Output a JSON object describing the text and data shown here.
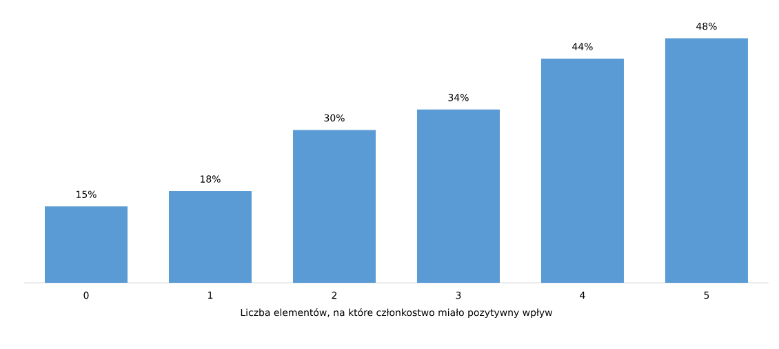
{
  "chart_data": {
    "type": "bar",
    "xlabel": "Liczba elementów, na które członkostwo miało pozytywny wpływ",
    "categories": [
      "0",
      "1",
      "2",
      "3",
      "4",
      "5"
    ],
    "values": [
      15,
      18,
      30,
      34,
      44,
      48
    ],
    "value_labels": [
      "15%",
      "18%",
      "30%",
      "34%",
      "44%",
      "48%"
    ],
    "color": "#5b9bd5"
  }
}
